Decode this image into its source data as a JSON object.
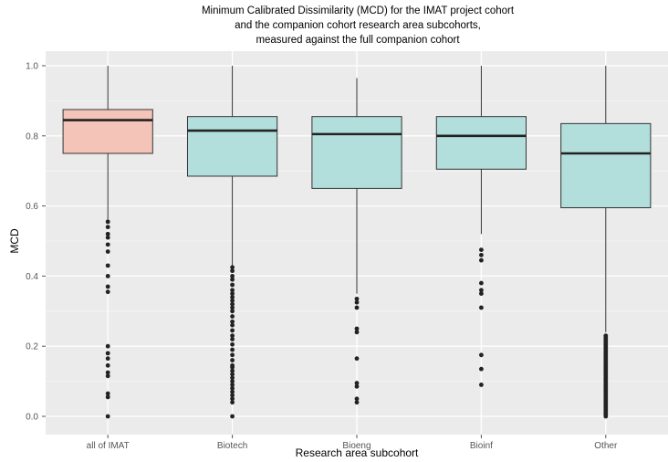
{
  "chart_data": {
    "type": "box",
    "title_lines": [
      "Minimum Calibrated Dissimilarity (MCD) for the IMAT project cohort",
      "and the companion cohort research area subcohorts,",
      "measured against the full companion cohort"
    ],
    "xlabel": "Research area subcohort",
    "ylabel": "MCD",
    "ylim": [
      0,
      1
    ],
    "yticks": [
      "0.0",
      "0.2",
      "0.4",
      "0.6",
      "0.8",
      "1.0"
    ],
    "grid": true,
    "legend": "none",
    "colors": {
      "highlight": "#f4c4b8",
      "default": "#b2dfdb",
      "panel": "#ebebeb",
      "grid": "#ffffff",
      "points": "#222222"
    },
    "categories": [
      "all of IMAT",
      "Biotech",
      "Bioeng",
      "Bioinf",
      "Other"
    ],
    "boxes": [
      {
        "category": "all of IMAT",
        "color": "highlight",
        "whisker_low": 0.56,
        "q1": 0.75,
        "median": 0.845,
        "q3": 0.875,
        "whisker_high": 1.0,
        "outliers": [
          0.555,
          0.54,
          0.52,
          0.51,
          0.49,
          0.47,
          0.43,
          0.4,
          0.37,
          0.355,
          0.2,
          0.18,
          0.165,
          0.145,
          0.125,
          0.115,
          0.065,
          0.055,
          0.0
        ]
      },
      {
        "category": "Biotech",
        "color": "default",
        "whisker_low": 0.43,
        "q1": 0.685,
        "median": 0.815,
        "q3": 0.855,
        "whisker_high": 1.0,
        "outliers": [
          0.425,
          0.415,
          0.4,
          0.39,
          0.375,
          0.36,
          0.35,
          0.34,
          0.33,
          0.32,
          0.31,
          0.3,
          0.285,
          0.27,
          0.26,
          0.245,
          0.23,
          0.22,
          0.205,
          0.19,
          0.175,
          0.16,
          0.145,
          0.14,
          0.13,
          0.12,
          0.11,
          0.1,
          0.09,
          0.08,
          0.07,
          0.06,
          0.05,
          0.04,
          0.0
        ]
      },
      {
        "category": "Bioeng",
        "color": "default",
        "whisker_low": 0.35,
        "q1": 0.65,
        "median": 0.805,
        "q3": 0.855,
        "whisker_high": 0.965,
        "outliers": [
          0.335,
          0.325,
          0.31,
          0.25,
          0.24,
          0.165,
          0.095,
          0.085,
          0.05,
          0.04
        ]
      },
      {
        "category": "Bioinf",
        "color": "default",
        "whisker_low": 0.52,
        "q1": 0.705,
        "median": 0.8,
        "q3": 0.855,
        "whisker_high": 1.0,
        "outliers": [
          0.475,
          0.46,
          0.445,
          0.38,
          0.36,
          0.35,
          0.31,
          0.175,
          0.135,
          0.09
        ]
      },
      {
        "category": "Other",
        "color": "default",
        "whisker_low": 0.24,
        "q1": 0.595,
        "median": 0.75,
        "q3": 0.835,
        "whisker_high": 1.0,
        "outliers": [
          0.23,
          0.225,
          0.22,
          0.215,
          0.21,
          0.205,
          0.2,
          0.195,
          0.19,
          0.185,
          0.18,
          0.175,
          0.17,
          0.165,
          0.16,
          0.155,
          0.15,
          0.145,
          0.14,
          0.135,
          0.13,
          0.125,
          0.12,
          0.115,
          0.11,
          0.105,
          0.1,
          0.095,
          0.09,
          0.085,
          0.08,
          0.075,
          0.07,
          0.065,
          0.06,
          0.055,
          0.05,
          0.045,
          0.04,
          0.035,
          0.03,
          0.025,
          0.02,
          0.015,
          0.01,
          0.005,
          0.0
        ]
      }
    ]
  }
}
